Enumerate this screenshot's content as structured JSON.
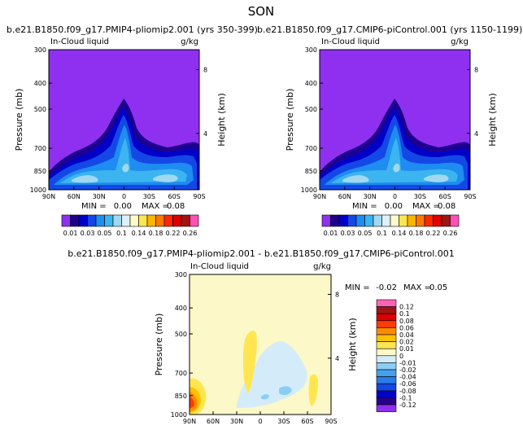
{
  "page_title": "SON",
  "colors": {
    "background": "#ffffff",
    "field_base": "#8f30f0",
    "diff_base": "#fcf8c8",
    "abs_levels": [
      "#8f30f0",
      "#1d0090",
      "#0000c8",
      "#1448e6",
      "#1e8cf0",
      "#3cb4f0",
      "#a0d8f0",
      "#dcf0fa",
      "#fffac8",
      "#ffe650",
      "#ffb400",
      "#ff7800",
      "#ff2800",
      "#dc0000",
      "#a01414",
      "#ff50b4"
    ],
    "diff_levels": [
      "#8f30f0",
      "#2a0090",
      "#0000c8",
      "#1448e6",
      "#2a7ce8",
      "#46a0f0",
      "#8ccdf5",
      "#d4ecfa",
      "#fffac8",
      "#ffe650",
      "#ffc000",
      "#ff8c00",
      "#ff3c00",
      "#dc0000",
      "#a01414",
      "#ff64b4"
    ]
  },
  "chart_data": [
    {
      "type": "contour",
      "title": "b.e21.B1850.f09_g17.PMIP4-pliomip2.001 (yrs 350-399)",
      "variable_label": "In-Cloud liquid",
      "units": "g/kg",
      "ylabel": "Pressure (mb)",
      "ylabel_right": "Height (km)",
      "x_ticks": [
        "90N",
        "60N",
        "30N",
        "0",
        "30S",
        "60S",
        "90S"
      ],
      "y_ticks": [
        "300",
        "400",
        "500",
        "700",
        "850",
        "1000"
      ],
      "y_ticks_right": [
        "8",
        "4"
      ],
      "min_label": "MIN =",
      "min_value": "0.00",
      "max_label": "MAX =",
      "max_value": "0.08",
      "colorbar_labels": [
        "0.01",
        "0.03",
        "0.05",
        "0.1",
        "0.14",
        "0.18",
        "0.22",
        "0.26"
      ],
      "colorbar_levels": [
        0.01,
        0.02,
        0.03,
        0.04,
        0.05,
        0.07,
        0.1,
        0.12,
        0.14,
        0.16,
        0.18,
        0.2,
        0.22,
        0.24,
        0.26
      ]
    },
    {
      "type": "contour",
      "title": "b.e21.B1850.f09_g17.CMIP6-piControl.001 (yrs 1150-1199)",
      "variable_label": "In-Cloud liquid",
      "units": "g/kg",
      "ylabel": "Pressure (mb)",
      "ylabel_right": "Height (km)",
      "x_ticks": [
        "90N",
        "60N",
        "30N",
        "0",
        "30S",
        "60S",
        "90S"
      ],
      "y_ticks": [
        "300",
        "400",
        "500",
        "700",
        "850",
        "1000"
      ],
      "y_ticks_right": [
        "8",
        "4"
      ],
      "min_label": "MIN =",
      "min_value": "0.00",
      "max_label": "MAX =",
      "max_value": "0.08",
      "colorbar_labels": [
        "0.01",
        "0.03",
        "0.05",
        "0.1",
        "0.14",
        "0.18",
        "0.22",
        "0.26"
      ],
      "colorbar_levels": [
        0.01,
        0.02,
        0.03,
        0.04,
        0.05,
        0.07,
        0.1,
        0.12,
        0.14,
        0.16,
        0.18,
        0.2,
        0.22,
        0.24,
        0.26
      ]
    },
    {
      "type": "contour",
      "title": "b.e21.B1850.f09_g17.PMIP4-pliomip2.001 - b.e21.B1850.f09_g17.CMIP6-piControl.001",
      "variable_label": "In-Cloud liquid",
      "units": "g/kg",
      "ylabel": "Pressure (mb)",
      "ylabel_right": "Height (km)",
      "x_ticks": [
        "90N",
        "60N",
        "30N",
        "0",
        "30S",
        "60S",
        "90S"
      ],
      "y_ticks": [
        "300",
        "400",
        "500",
        "700",
        "850",
        "1000"
      ],
      "y_ticks_right": [
        "8",
        "4"
      ],
      "min_label": "MIN =",
      "min_value": "-0.02",
      "max_label": "MAX =",
      "max_value": "0.05",
      "colorbar_labels": [
        "0.12",
        "0.1",
        "0.08",
        "0.06",
        "0.04",
        "0.02",
        "0.01",
        "0",
        "-0.01",
        "-0.02",
        "-0.04",
        "-0.06",
        "-0.08",
        "-0.1",
        "-0.12"
      ],
      "colorbar_levels": [
        0.12,
        0.1,
        0.08,
        0.06,
        0.04,
        0.02,
        0.01,
        0,
        -0.01,
        -0.02,
        -0.04,
        -0.06,
        -0.08,
        -0.1,
        -0.12
      ]
    }
  ]
}
